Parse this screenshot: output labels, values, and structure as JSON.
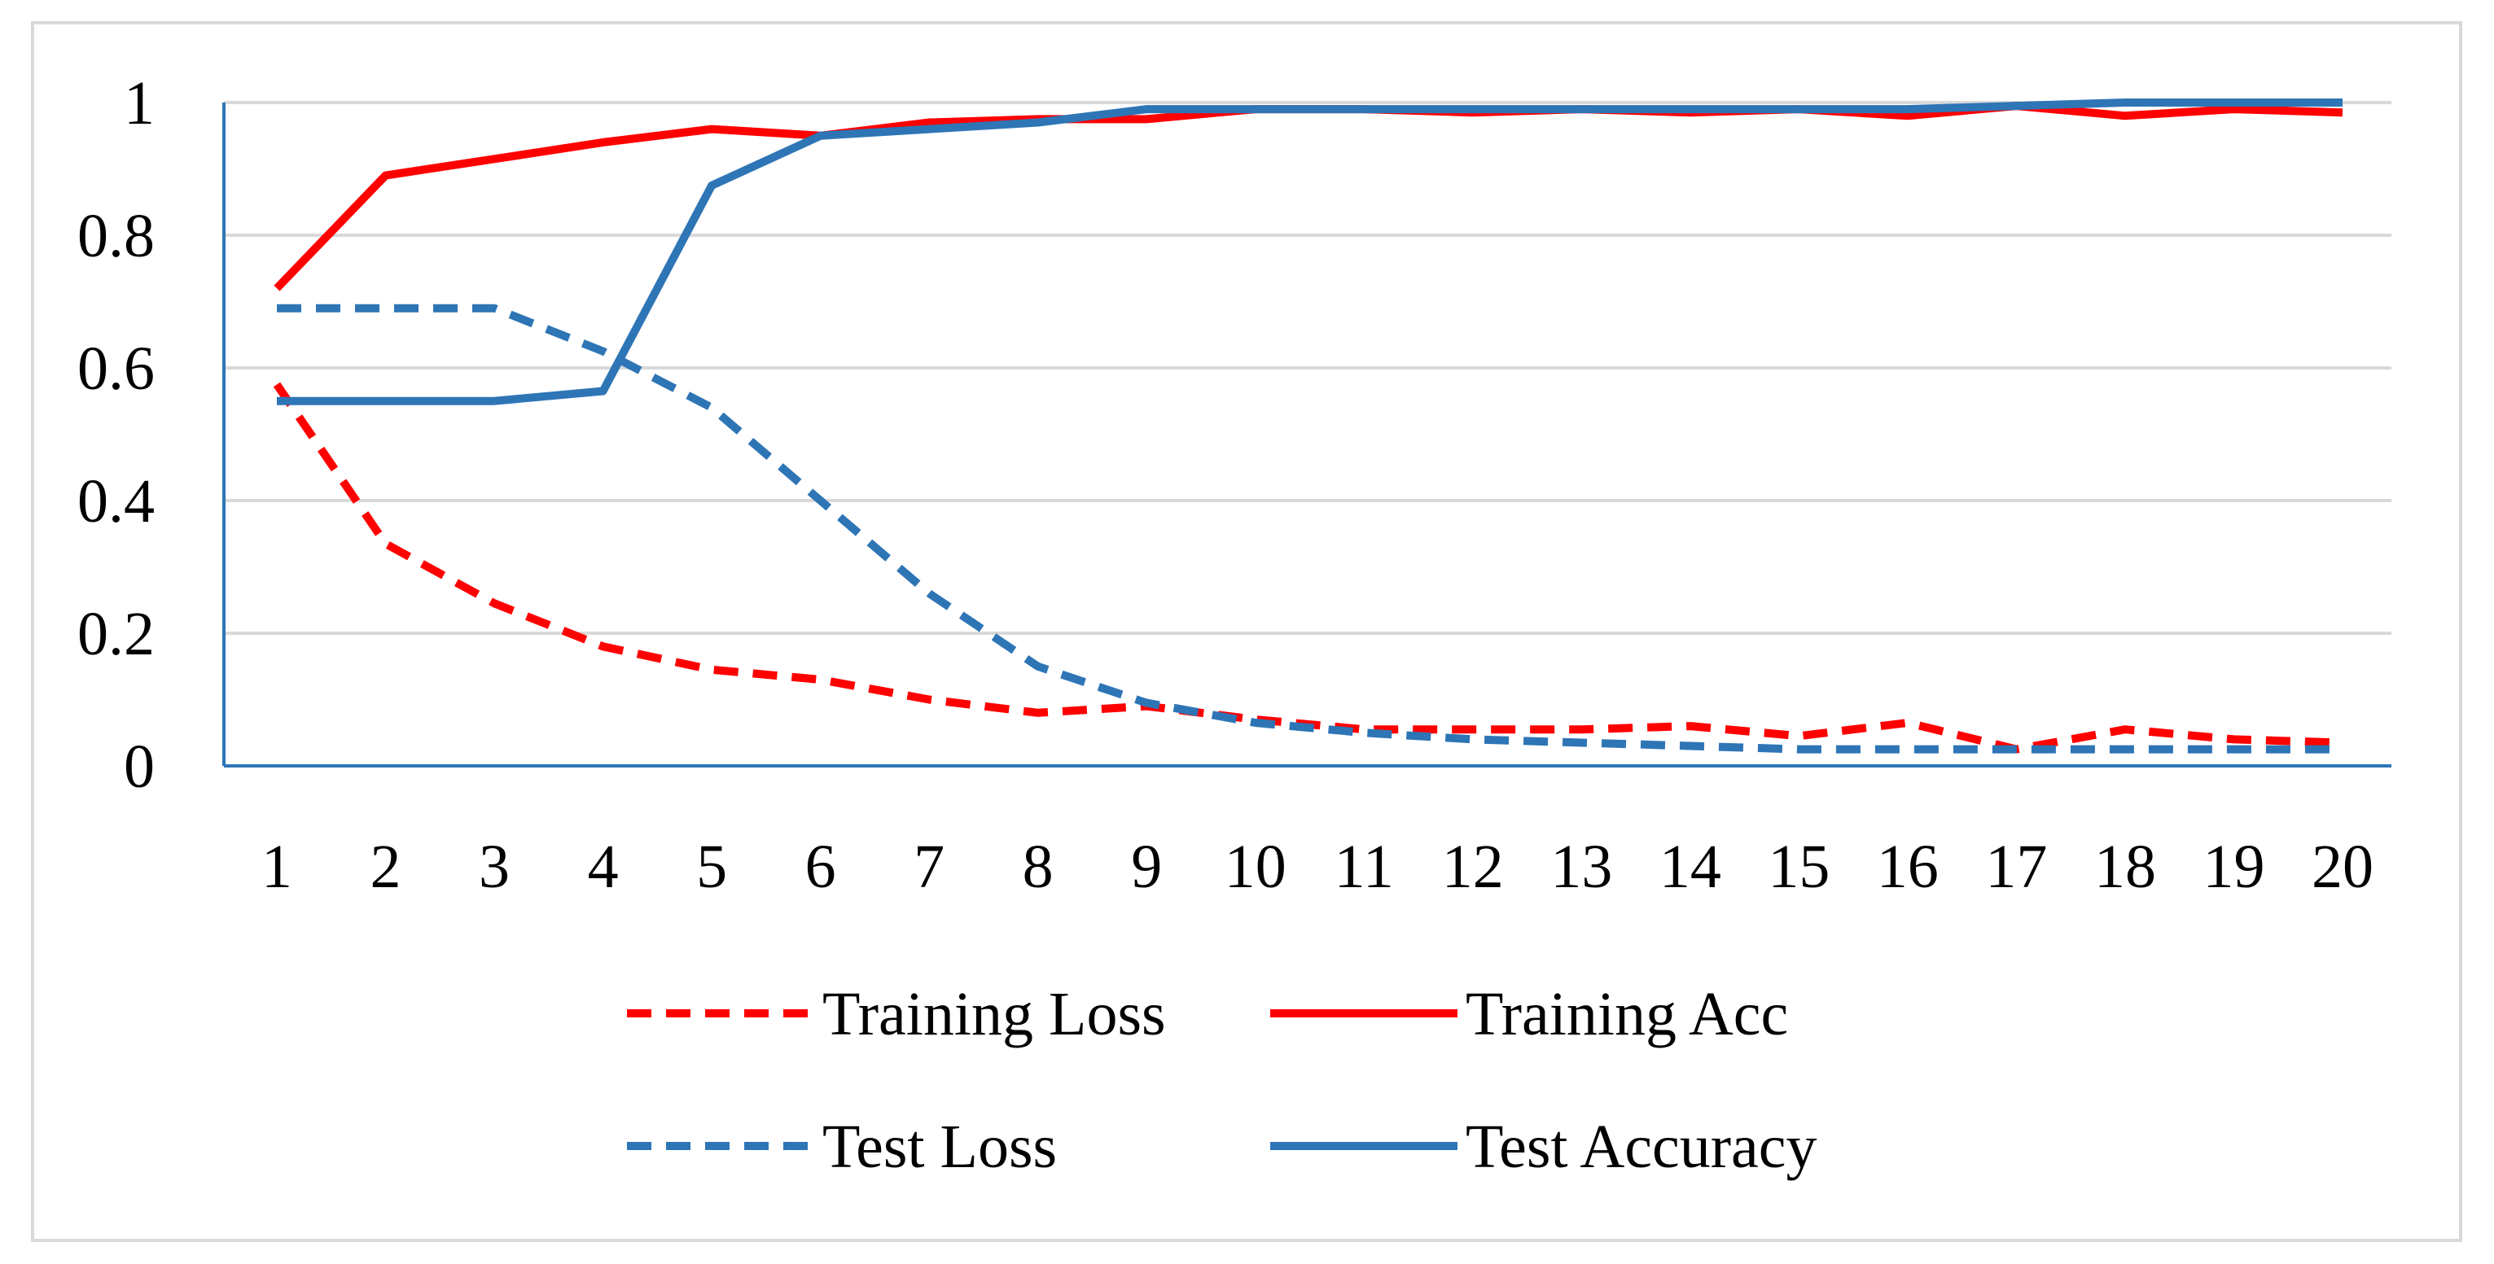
{
  "chart_data": {
    "type": "line",
    "title": "",
    "xlabel": "",
    "ylabel": "",
    "x": [
      1,
      2,
      3,
      4,
      5,
      6,
      7,
      8,
      9,
      10,
      11,
      12,
      13,
      14,
      15,
      16,
      17,
      18,
      19,
      20
    ],
    "x_tick_labels": [
      "1",
      "2",
      "3",
      "4",
      "5",
      "6",
      "7",
      "8",
      "9",
      "10",
      "11",
      "12",
      "13",
      "14",
      "15",
      "16",
      "17",
      "18",
      "19",
      "20"
    ],
    "y_tick_labels": [
      "0",
      "0.2",
      "0.4",
      "0.6",
      "0.8",
      "1"
    ],
    "y_ticks": [
      0,
      0.2,
      0.4,
      0.6,
      0.8,
      1
    ],
    "ylim": [
      0,
      1
    ],
    "grid": true,
    "legend_position": "bottom",
    "series": [
      {
        "name": "Training Loss",
        "color": "#ff0000",
        "dashed": true,
        "values": [
          0.575,
          0.335,
          0.245,
          0.18,
          0.145,
          0.13,
          0.1,
          0.08,
          0.09,
          0.07,
          0.055,
          0.055,
          0.055,
          0.06,
          0.045,
          0.065,
          0.025,
          0.055,
          0.04,
          0.035
        ]
      },
      {
        "name": "Training Acc",
        "color": "#ff0000",
        "dashed": false,
        "values": [
          0.72,
          0.89,
          0.915,
          0.94,
          0.96,
          0.95,
          0.97,
          0.975,
          0.975,
          0.99,
          0.99,
          0.985,
          0.99,
          0.985,
          0.99,
          0.98,
          0.995,
          0.98,
          0.99,
          0.985
        ]
      },
      {
        "name": "Test Loss",
        "color": "#2e75b6",
        "dashed": true,
        "values": [
          0.69,
          0.69,
          0.69,
          0.625,
          0.54,
          0.4,
          0.26,
          0.15,
          0.095,
          0.065,
          0.05,
          0.04,
          0.035,
          0.03,
          0.025,
          0.025,
          0.025,
          0.025,
          0.025,
          0.025
        ]
      },
      {
        "name": "Test Accuracy",
        "color": "#2e75b6",
        "dashed": false,
        "values": [
          0.55,
          0.55,
          0.55,
          0.565,
          0.875,
          0.95,
          0.96,
          0.97,
          0.99,
          0.99,
          0.99,
          0.99,
          0.99,
          0.99,
          0.99,
          0.99,
          0.995,
          1.0,
          1.0,
          1.0
        ]
      }
    ],
    "axis_color": "#2e75b6",
    "grid_color": "#d9d9d9"
  }
}
